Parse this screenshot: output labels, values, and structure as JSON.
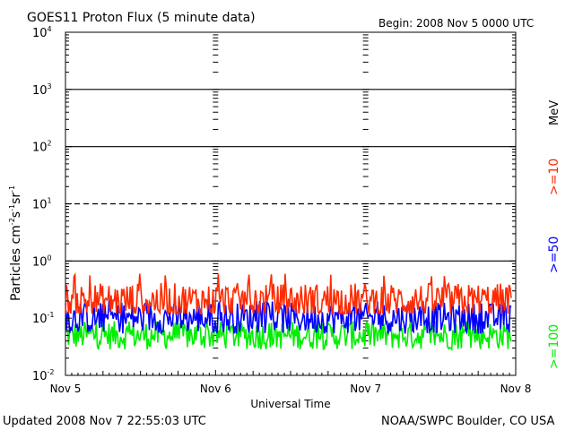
{
  "header": {
    "title": "GOES11 Proton Flux (5 minute data)",
    "begin": "Begin: 2008 Nov 5 0000 UTC"
  },
  "footer": {
    "updated": "Updated 2008 Nov  7 22:55:03 UTC",
    "credit": "NOAA/SWPC Boulder, CO USA"
  },
  "colors": {
    "ge10": "#ff2a00",
    "ge50": "#0000ff",
    "ge100": "#00ee00",
    "frame": "#000000"
  },
  "chart_data": {
    "type": "line",
    "title": "GOES11 Proton Flux (5 minute data)",
    "xlabel": "Universal Time",
    "ylabel": "Particles cm-2s-1sr-1",
    "yscale": "log",
    "x_ticks": [
      "Nov 5",
      "Nov 6",
      "Nov 7",
      "Nov 8"
    ],
    "xlim": [
      "2008-11-05T00:00Z",
      "2008-11-08T00:00Z"
    ],
    "ylim": [
      0.01,
      10000
    ],
    "y_ticks": [
      {
        "base": "10",
        "exp": "-2"
      },
      {
        "base": "10",
        "exp": "-1"
      },
      {
        "base": "10",
        "exp": "0"
      },
      {
        "base": "10",
        "exp": "1"
      },
      {
        "base": "10",
        "exp": "2"
      },
      {
        "base": "10",
        "exp": "3"
      },
      {
        "base": "10",
        "exp": "4"
      }
    ],
    "threshold_lines": [
      {
        "value": 1,
        "style": "solid"
      },
      {
        "value": 10,
        "style": "dashed"
      },
      {
        "value": 100,
        "style": "solid"
      },
      {
        "value": 1000,
        "style": "solid"
      }
    ],
    "legend_unit": "MeV",
    "series": [
      {
        "name": ">=10",
        "color": "#ff2a00",
        "typical": 0.2,
        "low": 0.12,
        "high": 0.6
      },
      {
        "name": ">=50",
        "color": "#0000ff",
        "typical": 0.1,
        "low": 0.05,
        "high": 0.2
      },
      {
        "name": ">=100",
        "color": "#00ee00",
        "typical": 0.05,
        "low": 0.025,
        "high": 0.09
      }
    ],
    "data_end": "2008-11-07T22:55Z"
  }
}
